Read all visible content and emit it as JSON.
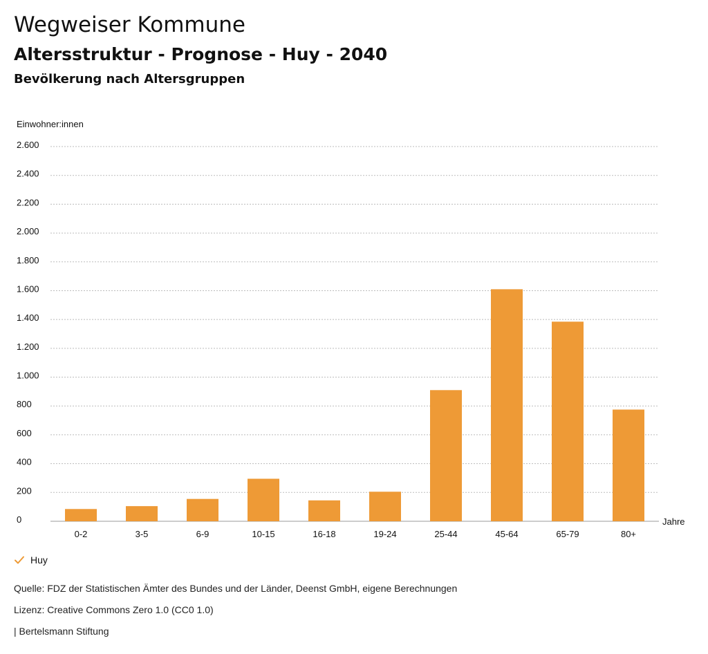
{
  "header": {
    "title": "Wegweiser Kommune",
    "subtitle": "Altersstruktur - Prognose - Huy - 2040",
    "chart_heading": "Bevölkerung nach Altersgruppen"
  },
  "chart_data": {
    "type": "bar",
    "ylabel": "Einwohner:innen",
    "xlabel": "Jahre",
    "categories": [
      "0-2",
      "3-5",
      "6-9",
      "10-15",
      "16-18",
      "19-24",
      "25-44",
      "45-64",
      "65-79",
      "80+"
    ],
    "series": [
      {
        "name": "Huy",
        "color": "#ee9a36",
        "values": [
          85,
          105,
          155,
          295,
          145,
          205,
          910,
          1610,
          1385,
          775
        ]
      }
    ],
    "ylim": [
      0,
      2600
    ],
    "yticks": [
      0,
      200,
      400,
      600,
      800,
      1000,
      1200,
      1400,
      1600,
      1800,
      2000,
      2200,
      2400,
      2600
    ],
    "ytick_labels": [
      "0",
      "200",
      "400",
      "600",
      "800",
      "1.000",
      "1.200",
      "1.400",
      "1.600",
      "1.800",
      "2.000",
      "2.200",
      "2.400",
      "2.600"
    ],
    "grid": true,
    "legend_position": "bottom-left"
  },
  "legend": {
    "label": "Huy",
    "icon": "check-icon",
    "color": "#ee9a36"
  },
  "footer": {
    "source": "Quelle: FDZ der Statistischen Ämter des Bundes und der Länder, Deenst GmbH, eigene Berechnungen",
    "license": "Lizenz: Creative Commons Zero 1.0 (CC0 1.0)",
    "publisher": "| Bertelsmann Stiftung"
  }
}
